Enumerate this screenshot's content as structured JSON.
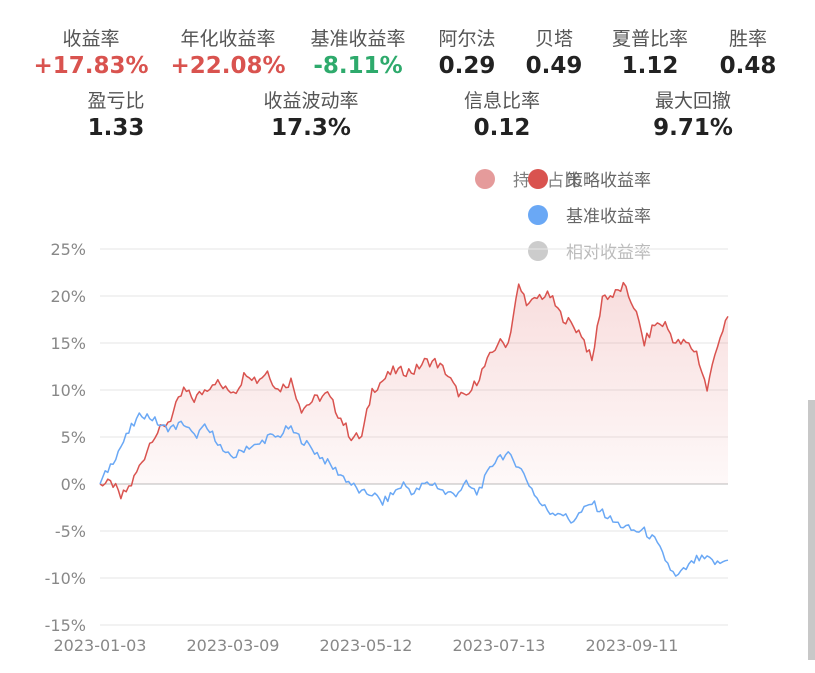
{
  "metrics": [
    {
      "label": "收益率",
      "value": "+17.83%",
      "color": "#d9534f"
    },
    {
      "label": "年化收益率",
      "value": "+22.08%",
      "color": "#d9534f"
    },
    {
      "label": "基准收益率",
      "value": "-8.11%",
      "color": "#2eaa6c"
    },
    {
      "label": "阿尔法",
      "value": "0.29",
      "color": "#222222"
    },
    {
      "label": "贝塔",
      "value": "0.49",
      "color": "#222222"
    },
    {
      "label": "夏普比率",
      "value": "1.12",
      "color": "#222222"
    },
    {
      "label": "胜率",
      "value": "0.48",
      "color": "#222222"
    },
    {
      "label": "盈亏比",
      "value": "1.33",
      "color": "#222222"
    },
    {
      "label": "收益波动率",
      "value": "17.3%",
      "color": "#222222"
    },
    {
      "label": "信息比率",
      "value": "0.12",
      "color": "#222222"
    },
    {
      "label": "最大回撤",
      "value": "9.71%",
      "color": "#222222"
    }
  ],
  "legend": [
    {
      "label": "持仓占比",
      "color": "#e08a8a"
    },
    {
      "label": "策略收益率",
      "color": "#d9534f"
    },
    {
      "label": "基准收益率",
      "color": "#6aa8f5"
    },
    {
      "label": "相对收益率",
      "color": "#cccccc"
    }
  ],
  "chart_data": {
    "type": "line",
    "x_ticks": [
      "2023-01-03",
      "2023-03-09",
      "2023-05-12",
      "2023-07-13",
      "2023-09-11"
    ],
    "y_ticks": [
      "25%",
      "20%",
      "15%",
      "10%",
      "5%",
      "0%",
      "-5%",
      "-10%",
      "-15%"
    ],
    "ylim": [
      -15,
      25
    ],
    "x_count": 200,
    "grid": true,
    "series": [
      {
        "name": "策略收益率",
        "color": "#d9534f",
        "area": true,
        "points": [
          [
            0,
            0
          ],
          [
            5,
            0
          ],
          [
            8,
            -1.5
          ],
          [
            12,
            0
          ],
          [
            17,
            3
          ],
          [
            20,
            5
          ],
          [
            24,
            6
          ],
          [
            27,
            7
          ],
          [
            32,
            10
          ],
          [
            36,
            9
          ],
          [
            40,
            10
          ],
          [
            44,
            11
          ],
          [
            48,
            10
          ],
          [
            52,
            10
          ],
          [
            56,
            12
          ],
          [
            60,
            11
          ],
          [
            64,
            12
          ],
          [
            68,
            10
          ],
          [
            73,
            11
          ],
          [
            77,
            8
          ],
          [
            82,
            9
          ],
          [
            87,
            9.5
          ],
          [
            92,
            7
          ],
          [
            96,
            5
          ],
          [
            100,
            5
          ],
          [
            104,
            10
          ],
          [
            108,
            11
          ],
          [
            112,
            12
          ],
          [
            116,
            12
          ],
          [
            120,
            12
          ],
          [
            124,
            13
          ],
          [
            128,
            13
          ],
          [
            132,
            12
          ],
          [
            136,
            10
          ],
          [
            140,
            9
          ],
          [
            144,
            11
          ],
          [
            148,
            13
          ],
          [
            152,
            15
          ],
          [
            156,
            15
          ],
          [
            160,
            21
          ],
          [
            164,
            19
          ],
          [
            168,
            20
          ],
          [
            172,
            20
          ],
          [
            176,
            18
          ],
          [
            180,
            17
          ],
          [
            184,
            16
          ],
          [
            188,
            13
          ],
          [
            192,
            20
          ],
          [
            196,
            20
          ],
          [
            200,
            21
          ],
          [
            204,
            19
          ],
          [
            208,
            15
          ],
          [
            212,
            17
          ],
          [
            216,
            17
          ],
          [
            220,
            15
          ],
          [
            224,
            15
          ],
          [
            228,
            14
          ],
          [
            232,
            10
          ],
          [
            236,
            15
          ],
          [
            240,
            17.83
          ]
        ]
      },
      {
        "name": "基准收益率",
        "color": "#6aa8f5",
        "area": false,
        "points": [
          [
            0,
            0
          ],
          [
            4,
            2
          ],
          [
            8,
            4
          ],
          [
            12,
            6
          ],
          [
            16,
            7.5
          ],
          [
            20,
            7
          ],
          [
            24,
            6
          ],
          [
            28,
            6
          ],
          [
            32,
            6.5
          ],
          [
            36,
            5
          ],
          [
            40,
            6
          ],
          [
            44,
            5
          ],
          [
            48,
            3
          ],
          [
            52,
            3
          ],
          [
            56,
            4
          ],
          [
            60,
            4
          ],
          [
            64,
            5
          ],
          [
            68,
            5
          ],
          [
            72,
            6
          ],
          [
            76,
            5
          ],
          [
            80,
            4
          ],
          [
            84,
            3
          ],
          [
            88,
            2
          ],
          [
            92,
            1
          ],
          [
            96,
            0
          ],
          [
            100,
            -1
          ],
          [
            104,
            -1
          ],
          [
            108,
            -2
          ],
          [
            112,
            -1
          ],
          [
            116,
            0
          ],
          [
            120,
            -1
          ],
          [
            124,
            0
          ],
          [
            128,
            0
          ],
          [
            132,
            -1
          ],
          [
            136,
            -1
          ],
          [
            140,
            0
          ],
          [
            144,
            -1
          ],
          [
            148,
            1
          ],
          [
            152,
            3
          ],
          [
            156,
            3
          ],
          [
            160,
            2
          ],
          [
            164,
            0
          ],
          [
            168,
            -2
          ],
          [
            172,
            -3
          ],
          [
            176,
            -3
          ],
          [
            180,
            -4
          ],
          [
            184,
            -3
          ],
          [
            188,
            -2
          ],
          [
            192,
            -3
          ],
          [
            196,
            -4
          ],
          [
            200,
            -4.5
          ],
          [
            204,
            -5
          ],
          [
            208,
            -5
          ],
          [
            212,
            -6
          ],
          [
            216,
            -8
          ],
          [
            220,
            -10
          ],
          [
            224,
            -9
          ],
          [
            228,
            -8
          ],
          [
            232,
            -8
          ],
          [
            236,
            -8.5
          ],
          [
            240,
            -8.11
          ]
        ]
      }
    ]
  }
}
